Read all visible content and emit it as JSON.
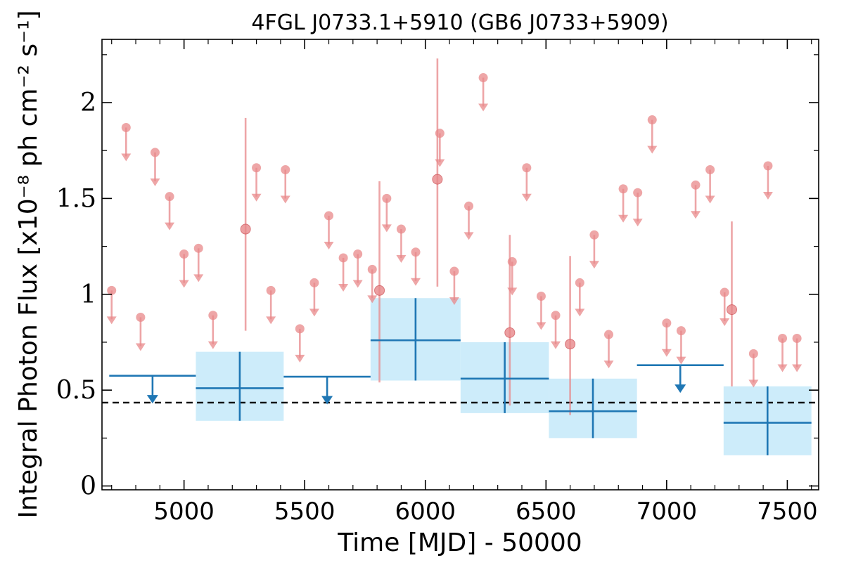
{
  "chart_data": {
    "type": "scatter",
    "title": "4FGL J0733.1+5910 (GB6 J0733+5909)",
    "xlabel": "Time [MJD] - 50000",
    "ylabel": "Integral Photon Flux [x10⁻⁸ ph cm⁻² s⁻¹]",
    "xlim": [
      4660,
      7630
    ],
    "ylim": [
      -0.02,
      2.33
    ],
    "x_ticks": [
      5000,
      5500,
      6000,
      6500,
      7000,
      7500
    ],
    "x_tick_labels": [
      "5000",
      "5500",
      "6000",
      "6500",
      "7000",
      "7500"
    ],
    "y_ticks": [
      0,
      0.5,
      1,
      1.5,
      2
    ],
    "y_tick_labels": [
      "0",
      "0.5",
      "1",
      "1.5",
      "2"
    ],
    "reference_line": {
      "value": 0.435,
      "style": "dashed",
      "color": "#000000"
    },
    "colors": {
      "fine": "#e8888a",
      "coarse": "#1f77b4",
      "band": "#cdecfa"
    },
    "series": [
      {
        "kind": "fine-bin upper limits",
        "x": [
          4700,
          4760,
          4820,
          4880,
          4940,
          5000,
          5060,
          5120,
          5300,
          5360,
          5420,
          5480,
          5540,
          5600,
          5660,
          5720,
          5780,
          5840,
          5900,
          5960,
          6060,
          6120,
          6180,
          6240,
          6360,
          6420,
          6480,
          6540,
          6640,
          6700,
          6760,
          6820,
          6880,
          6940,
          7000,
          7060,
          7120,
          7180,
          7240,
          7360,
          7420,
          7480,
          7540
        ],
        "y": [
          1.02,
          1.87,
          0.88,
          1.74,
          1.51,
          1.21,
          1.24,
          0.89,
          1.66,
          1.02,
          1.65,
          0.82,
          1.06,
          1.41,
          1.19,
          1.21,
          1.13,
          1.5,
          1.34,
          1.22,
          1.84,
          1.12,
          1.46,
          2.13,
          1.17,
          1.66,
          0.99,
          0.89,
          1.06,
          1.31,
          0.79,
          1.55,
          1.53,
          1.91,
          0.85,
          0.81,
          1.57,
          1.65,
          1.01,
          0.69,
          1.67,
          0.77,
          0.77
        ]
      },
      {
        "kind": "fine-bin detections",
        "x": [
          5255,
          5810,
          6050,
          6350,
          6600,
          7270
        ],
        "y": [
          1.34,
          1.02,
          1.6,
          0.8,
          0.74,
          0.92
        ],
        "y_low": [
          0.81,
          0.54,
          1.04,
          0.42,
          0.37,
          0.52
        ],
        "y_high": [
          1.92,
          1.59,
          2.23,
          1.31,
          1.2,
          1.38
        ]
      },
      {
        "kind": "coarse-bin upper limits",
        "x_left": [
          4690,
          5413,
          6877
        ],
        "x_right": [
          5049,
          5773,
          7236
        ],
        "y": [
          0.575,
          0.57,
          0.63
        ]
      },
      {
        "kind": "coarse-bin detections",
        "x_left": [
          5049,
          5773,
          6146,
          6512,
          7236
        ],
        "x_right": [
          5413,
          6146,
          6512,
          6877,
          7600
        ],
        "y": [
          0.51,
          0.76,
          0.56,
          0.39,
          0.33
        ],
        "y_low": [
          0.34,
          0.55,
          0.38,
          0.25,
          0.16
        ],
        "y_high": [
          0.7,
          0.98,
          0.75,
          0.56,
          0.52
        ]
      }
    ]
  }
}
